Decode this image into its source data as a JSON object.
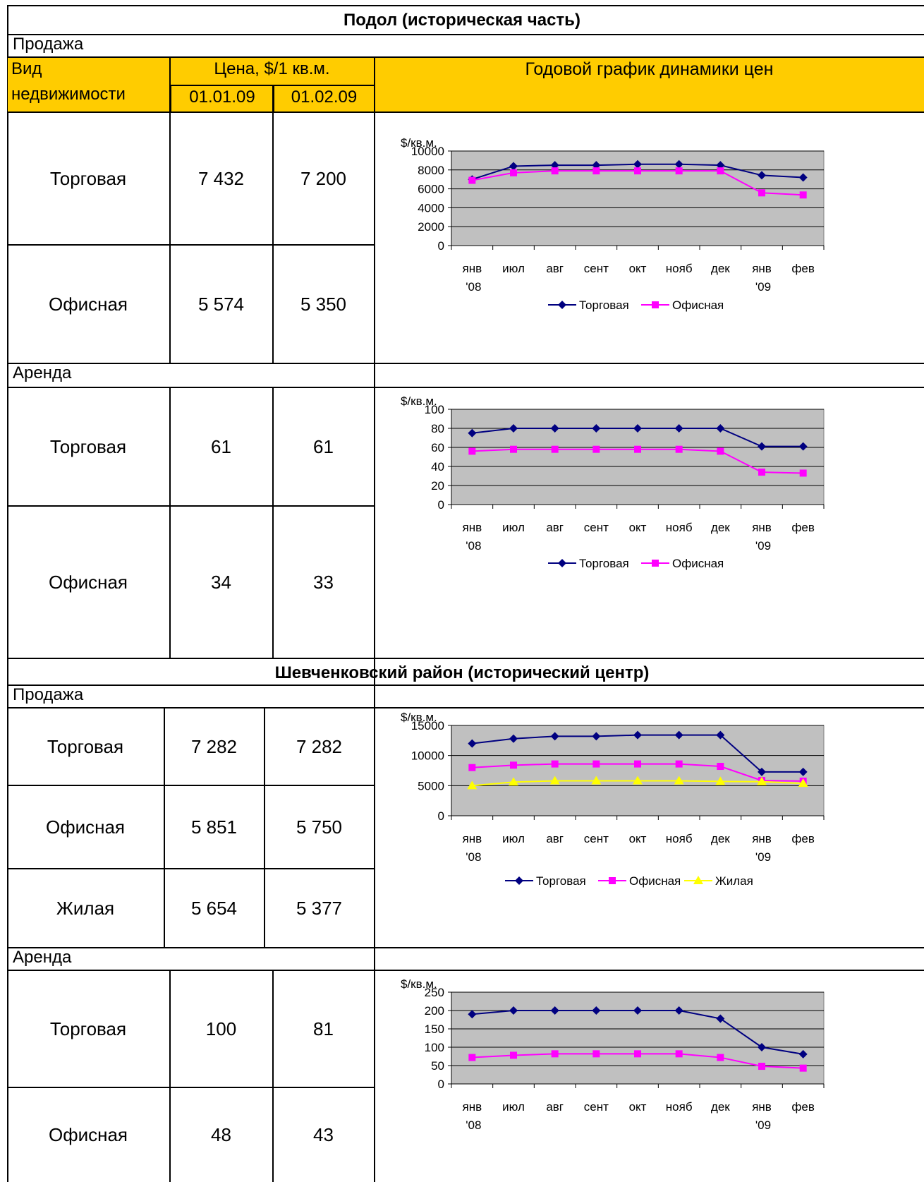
{
  "podol": {
    "title": "Подол (историческая часть)",
    "sale_label": "Продажа",
    "rent_label": "Аренда",
    "header": {
      "type_line1": "Вид",
      "type_line2": "недвижимости",
      "price_label": "Цена, $/1 кв.м.",
      "date1": "01.01.09",
      "date2": "01.02.09",
      "chart_label": "Годовой график динамики цен"
    },
    "sale_rows": [
      {
        "type": "Торговая",
        "v1": "7 432",
        "v2": "7 200"
      },
      {
        "type": "Офисная",
        "v1": "5 574",
        "v2": "5 350"
      }
    ],
    "rent_rows": [
      {
        "type": "Торговая",
        "v1": "61",
        "v2": "61"
      },
      {
        "type": "Офисная",
        "v1": "34",
        "v2": "33"
      }
    ]
  },
  "shevchenko": {
    "title": "Шевченковский район (исторический центр)",
    "sale_label": "Продажа",
    "rent_label": "Аренда",
    "sale_rows": [
      {
        "type": "Торговая",
        "v1": "7 282",
        "v2": "7 282"
      },
      {
        "type": "Офисная",
        "v1": "5 851",
        "v2": "5 750"
      },
      {
        "type": "Жилая",
        "v1": "5 654",
        "v2": "5 377"
      }
    ],
    "rent_rows": [
      {
        "type": "Торговая",
        "v1": "100",
        "v2": "81"
      },
      {
        "type": "Офисная",
        "v1": "48",
        "v2": "43"
      }
    ]
  },
  "colors": {
    "header_bg": "#ffcc00",
    "plot_bg": "#c0c0c0",
    "trade": "#000080",
    "office": "#ff00ff",
    "residential": "#ffff00"
  },
  "chart_data": [
    {
      "type": "line",
      "section": "Подол — Продажа",
      "ylabel": "$/кв.м.",
      "ylim": [
        0,
        10000
      ],
      "yticks": [
        0,
        2000,
        4000,
        6000,
        8000,
        10000
      ],
      "categories": [
        "янв\n'08",
        "июл",
        "авг",
        "сент",
        "окт",
        "нояб",
        "дек",
        "янв\n'09",
        "фев"
      ],
      "series": [
        {
          "name": "Торговая",
          "marker": "diamond",
          "values": [
            7000,
            8400,
            8500,
            8500,
            8600,
            8600,
            8500,
            7432,
            7200
          ]
        },
        {
          "name": "Офисная",
          "marker": "square",
          "values": [
            6900,
            7700,
            7900,
            7900,
            7900,
            7900,
            7900,
            5574,
            5350
          ]
        }
      ],
      "grid": true,
      "legend": "bottom"
    },
    {
      "type": "line",
      "section": "Подол — Аренда",
      "ylabel": "$/кв.м.",
      "ylim": [
        0,
        100
      ],
      "yticks": [
        0,
        20,
        40,
        60,
        80,
        100
      ],
      "categories": [
        "янв\n'08",
        "июл",
        "авг",
        "сент",
        "окт",
        "нояб",
        "дек",
        "янв\n'09",
        "фев"
      ],
      "series": [
        {
          "name": "Торговая",
          "marker": "diamond",
          "values": [
            75,
            80,
            80,
            80,
            80,
            80,
            80,
            61,
            61
          ]
        },
        {
          "name": "Офисная",
          "marker": "square",
          "values": [
            56,
            58,
            58,
            58,
            58,
            58,
            56,
            34,
            33
          ]
        }
      ],
      "grid": true,
      "legend": "bottom"
    },
    {
      "type": "line",
      "section": "Шевченковский — Продажа",
      "ylabel": "$/кв.м.",
      "ylim": [
        0,
        15000
      ],
      "yticks": [
        0,
        5000,
        10000,
        15000
      ],
      "categories": [
        "янв\n'08",
        "июл",
        "авг",
        "сент",
        "окт",
        "нояб",
        "дек",
        "янв\n'09",
        "фев"
      ],
      "series": [
        {
          "name": "Торговая",
          "marker": "diamond",
          "values": [
            12000,
            12800,
            13200,
            13200,
            13400,
            13400,
            13400,
            7282,
            7282
          ]
        },
        {
          "name": "Офисная",
          "marker": "square",
          "values": [
            8000,
            8400,
            8600,
            8600,
            8600,
            8600,
            8200,
            5851,
            5750
          ]
        },
        {
          "name": "Жилая",
          "marker": "triangle",
          "values": [
            5000,
            5600,
            5800,
            5800,
            5800,
            5800,
            5700,
            5654,
            5377
          ]
        }
      ],
      "grid": true,
      "legend": "bottom"
    },
    {
      "type": "line",
      "section": "Шевченковский — Аренда",
      "ylabel": "$/кв.м.",
      "ylim": [
        0,
        250
      ],
      "yticks": [
        0,
        50,
        100,
        150,
        200,
        250
      ],
      "categories": [
        "янв\n'08",
        "июл",
        "авг",
        "сент",
        "окт",
        "нояб",
        "дек",
        "янв\n'09",
        "фев"
      ],
      "series": [
        {
          "name": "Торговая",
          "marker": "diamond",
          "values": [
            190,
            200,
            200,
            200,
            200,
            200,
            178,
            100,
            81
          ]
        },
        {
          "name": "Офисная",
          "marker": "square",
          "values": [
            72,
            78,
            82,
            82,
            82,
            82,
            72,
            48,
            43
          ]
        }
      ],
      "grid": true,
      "legend": "none"
    }
  ]
}
